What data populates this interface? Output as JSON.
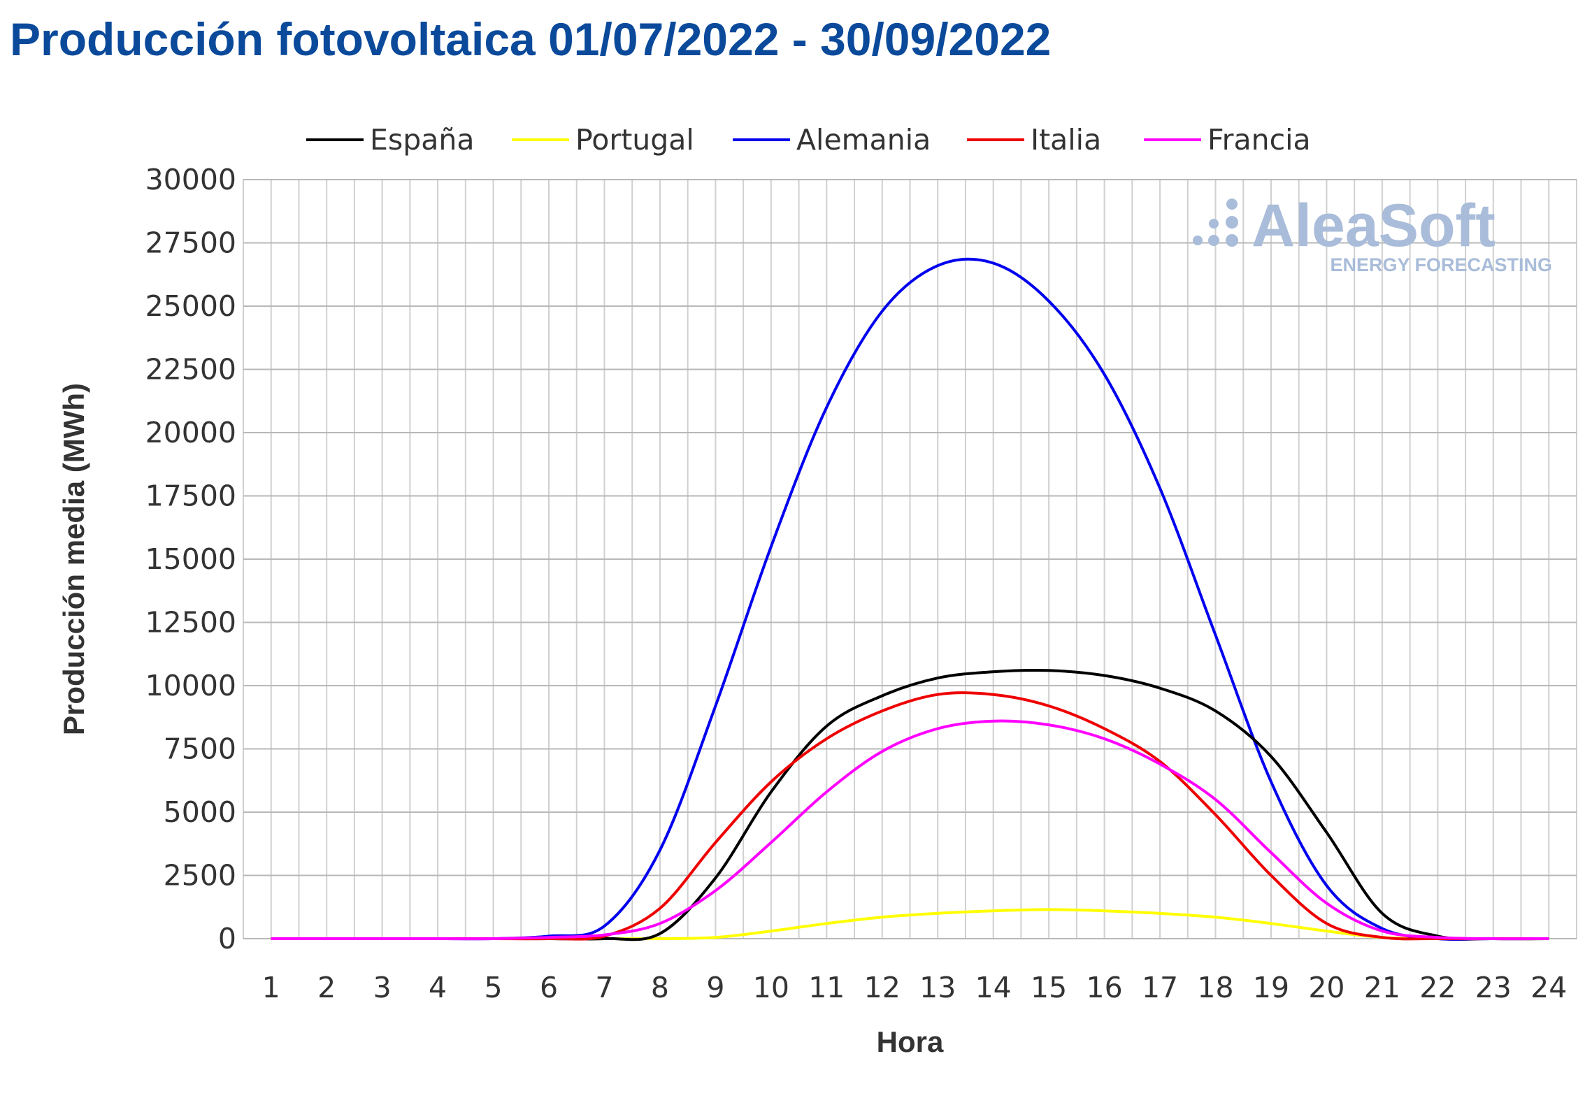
{
  "title": "Producción fotovoltaica 01/07/2022 - 30/09/2022",
  "watermark": {
    "brand": "AleaSoft",
    "tagline": "ENERGY FORECASTING",
    "color": "#a9bcd9"
  },
  "chart_data": {
    "type": "line",
    "xlabel": "Hora",
    "ylabel": "Producción media (MWh)",
    "ylim": [
      0,
      30000
    ],
    "yticks": [
      0,
      2500,
      5000,
      7500,
      10000,
      12500,
      15000,
      17500,
      20000,
      22500,
      25000,
      27500,
      30000
    ],
    "x": [
      1,
      2,
      3,
      4,
      5,
      6,
      7,
      8,
      9,
      10,
      11,
      12,
      13,
      14,
      15,
      16,
      17,
      18,
      19,
      20,
      21,
      22,
      23,
      24
    ],
    "grid": true,
    "legend_position": "top",
    "series": [
      {
        "name": "España",
        "color": "#000000",
        "values": [
          0,
          0,
          0,
          0,
          0,
          0,
          0,
          200,
          2400,
          5800,
          8400,
          9600,
          10300,
          10550,
          10600,
          10400,
          9900,
          9000,
          7200,
          4200,
          1000,
          100,
          0,
          0
        ]
      },
      {
        "name": "Portugal",
        "color": "#ffff00",
        "values": [
          0,
          0,
          0,
          0,
          0,
          0,
          0,
          0,
          50,
          300,
          600,
          850,
          1000,
          1100,
          1150,
          1100,
          1000,
          850,
          600,
          300,
          50,
          0,
          0,
          0
        ]
      },
      {
        "name": "Alemania",
        "color": "#0000ee",
        "values": [
          0,
          0,
          0,
          0,
          0,
          100,
          500,
          3500,
          9200,
          15500,
          21000,
          24800,
          26600,
          26700,
          25200,
          22300,
          17800,
          12000,
          6200,
          2100,
          400,
          0,
          0,
          0
        ]
      },
      {
        "name": "Italia",
        "color": "#ee0000",
        "values": [
          0,
          0,
          0,
          0,
          0,
          0,
          100,
          1200,
          3800,
          6200,
          7900,
          9000,
          9650,
          9650,
          9200,
          8300,
          7000,
          4900,
          2500,
          600,
          50,
          0,
          0,
          0
        ]
      },
      {
        "name": "Francia",
        "color": "#ff00ff",
        "values": [
          0,
          0,
          0,
          0,
          0,
          50,
          150,
          600,
          1900,
          3800,
          5800,
          7400,
          8300,
          8600,
          8450,
          7900,
          6900,
          5500,
          3400,
          1400,
          300,
          50,
          0,
          0
        ]
      }
    ]
  }
}
